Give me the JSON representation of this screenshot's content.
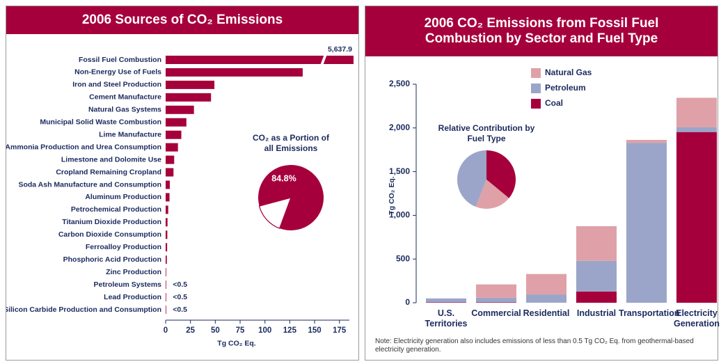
{
  "chart_data": [
    {
      "type": "bar",
      "orientation": "horizontal",
      "title": "2006 Sources of CO₂ Emissions",
      "categories": [
        "Fossil Fuel Combustion",
        "Non-Energy Use of Fuels",
        "Iron and Steel Production",
        "Cement Manufacture",
        "Natural Gas Systems",
        "Municipal Solid Waste Combustion",
        "Lime Manufacture",
        "Ammonia Production and Urea Consumption",
        "Limestone and Dolomite Use",
        "Cropland Remaining Cropland",
        "Soda Ash Manufacture and Consumption",
        "Aluminum Production",
        "Petrochemical Production",
        "Titanium Dioxide Production",
        "Carbon Dioxide Consumption",
        "Ferroalloy Production",
        "Phosphoric Acid Production",
        "Zinc Production",
        "Petroleum Systems",
        "Lead Production",
        "Silicon Carbide Production and Consumption"
      ],
      "values": [
        5637.9,
        138.0,
        49.1,
        45.7,
        28.5,
        20.9,
        15.8,
        12.4,
        8.6,
        7.9,
        4.2,
        3.9,
        2.6,
        1.9,
        1.7,
        1.5,
        1.2,
        0.5,
        0.3,
        0.3,
        0.2
      ],
      "value_labels": [
        "5,637.9",
        null,
        null,
        null,
        null,
        null,
        null,
        null,
        null,
        null,
        null,
        null,
        null,
        null,
        null,
        null,
        null,
        null,
        "<0.5",
        "<0.5",
        "<0.5"
      ],
      "color": "#a6003c",
      "xlim": [
        0,
        185
      ],
      "xticks": [
        0,
        25,
        50,
        75,
        100,
        125,
        150,
        175
      ],
      "xlabel": "Tg CO₂ Eq.",
      "axis_break": true
    },
    {
      "type": "pie",
      "title": "CO₂ as a Portion of all Emissions",
      "values": [
        84.8,
        15.2
      ],
      "value_labels": [
        "84.8%",
        null
      ],
      "colors": [
        "#a6003c",
        "#ffffff"
      ]
    },
    {
      "type": "stacked_bar",
      "title": "2006 CO₂ Emissions from Fossil Fuel Combustion by Sector and Fuel Type",
      "categories": [
        "U.S. Territories",
        "Commercial",
        "Residential",
        "Industrial",
        "Transportation",
        "Electricity Generation"
      ],
      "series": [
        {
          "name": "Coal",
          "color": "#a6003c",
          "values": [
            4,
            6,
            1,
            128,
            0,
            1953
          ]
        },
        {
          "name": "Petroleum",
          "color": "#9ba5c9",
          "values": [
            45,
            51,
            94,
            352,
            1830,
            54
          ]
        },
        {
          "name": "Natural Gas",
          "color": "#dfa1a7",
          "values": [
            1,
            153,
            234,
            396,
            33,
            338
          ]
        }
      ],
      "ylim": [
        0,
        2500
      ],
      "yticks": [
        0,
        500,
        {
          "value": 1000,
          "label": "1,000"
        },
        {
          "value": 1500,
          "label": "1,500"
        },
        {
          "value": 2000,
          "label": "2,000"
        },
        {
          "value": 2500,
          "label": "2,500"
        }
      ],
      "ylabel": "Tg CO₂ Eq.",
      "note": "Note: Electricity generation also includes emissions of less than 0.5 Tg CO₂ Eq. from geothermal-based electricity generation."
    },
    {
      "type": "pie",
      "title": "Relative Contribution by Fuel Type",
      "values": [
        36,
        20,
        44
      ],
      "colors": [
        "#a6003c",
        "#dfa1a7",
        "#9ba5c9"
      ]
    }
  ]
}
